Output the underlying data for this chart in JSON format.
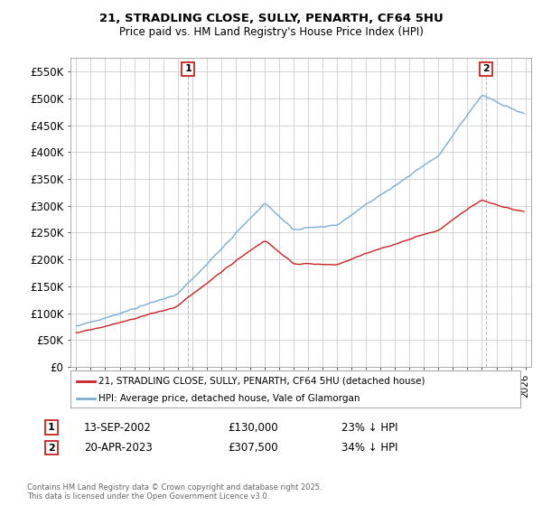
{
  "title1": "21, STRADLING CLOSE, SULLY, PENARTH, CF64 5HU",
  "title2": "Price paid vs. HM Land Registry's House Price Index (HPI)",
  "ylim": [
    0,
    575000
  ],
  "yticks": [
    0,
    50000,
    100000,
    150000,
    200000,
    250000,
    300000,
    350000,
    400000,
    450000,
    500000,
    550000
  ],
  "ytick_labels": [
    "£0",
    "£50K",
    "£100K",
    "£150K",
    "£200K",
    "£250K",
    "£300K",
    "£350K",
    "£400K",
    "£450K",
    "£500K",
    "£550K"
  ],
  "xlim_start": 1994.6,
  "xlim_end": 2026.4,
  "bg_color": "#ffffff",
  "plot_bg_color": "#ffffff",
  "grid_color": "#cccccc",
  "hpi_color": "#7aaed6",
  "price_color": "#cc2222",
  "marker1_x": 2002.71,
  "marker1_price": 130000,
  "marker2_x": 2023.29,
  "marker2_price": 307500,
  "legend_line1": "21, STRADLING CLOSE, SULLY, PENARTH, CF64 5HU (detached house)",
  "legend_line2": "HPI: Average price, detached house, Vale of Glamorgan",
  "footnote": "Contains HM Land Registry data © Crown copyright and database right 2025.\nThis data is licensed under the Open Government Licence v3.0."
}
